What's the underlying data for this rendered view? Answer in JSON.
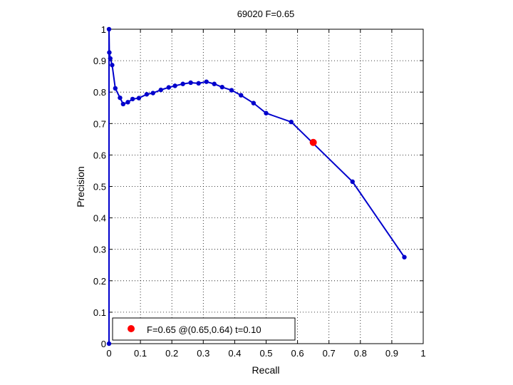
{
  "chart_data": {
    "type": "line",
    "title": "69020 F=0.65",
    "xlabel": "Recall",
    "ylabel": "Precision",
    "xlim": [
      0,
      1
    ],
    "ylim": [
      0,
      1
    ],
    "grid": true,
    "legend_position": "bottom-left",
    "x_ticks": [
      "0",
      "0.1",
      "0.2",
      "0.3",
      "0.4",
      "0.5",
      "0.6",
      "0.7",
      "0.8",
      "0.9",
      "1"
    ],
    "y_ticks": [
      "0",
      "0.1",
      "0.2",
      "0.3",
      "0.4",
      "0.5",
      "0.6",
      "0.7",
      "0.8",
      "0.9",
      "1"
    ],
    "series": [
      {
        "color": "#0000cc",
        "points": [
          [
            0.0,
            0.0
          ],
          [
            0.0,
            1.0
          ],
          [
            0.001,
            0.926
          ],
          [
            0.004,
            0.907
          ],
          [
            0.01,
            0.886
          ],
          [
            0.02,
            0.812
          ],
          [
            0.035,
            0.782
          ],
          [
            0.045,
            0.762
          ],
          [
            0.06,
            0.768
          ],
          [
            0.075,
            0.778
          ],
          [
            0.095,
            0.781
          ],
          [
            0.12,
            0.793
          ],
          [
            0.14,
            0.797
          ],
          [
            0.165,
            0.807
          ],
          [
            0.19,
            0.815
          ],
          [
            0.21,
            0.82
          ],
          [
            0.235,
            0.826
          ],
          [
            0.26,
            0.83
          ],
          [
            0.285,
            0.828
          ],
          [
            0.31,
            0.833
          ],
          [
            0.335,
            0.826
          ],
          [
            0.36,
            0.816
          ],
          [
            0.39,
            0.806
          ],
          [
            0.42,
            0.79
          ],
          [
            0.46,
            0.765
          ],
          [
            0.5,
            0.733
          ],
          [
            0.58,
            0.705
          ],
          [
            0.775,
            0.515
          ],
          [
            0.94,
            0.275
          ]
        ]
      }
    ],
    "highlight": {
      "x": 0.65,
      "y": 0.64,
      "color": "#ff0000"
    },
    "legend": {
      "label": "F=0.65 @(0.65,0.64) t=0.10",
      "color": "#ff0000"
    }
  }
}
